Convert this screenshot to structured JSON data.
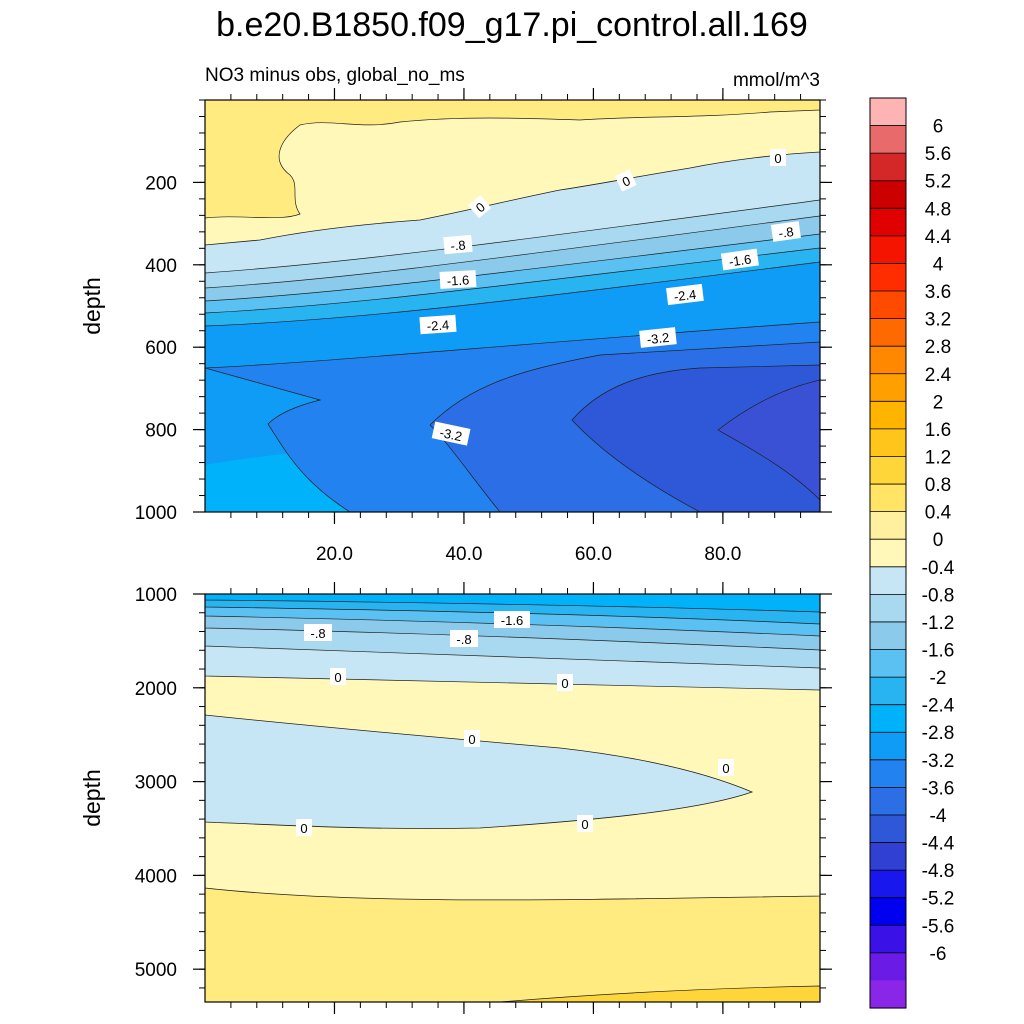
{
  "chart_data": {
    "type": "contour",
    "title": "b.e20.B1850.f09_g17.pi_control.all.169",
    "subtitle": "NO3 minus obs, global_no_ms",
    "units": "mmol/m^3",
    "colorbar": {
      "levels": [
        "6",
        "5.6",
        "5.2",
        "4.8",
        "4.4",
        "4",
        "3.6",
        "3.2",
        "2.8",
        "2.4",
        "2",
        "1.6",
        "1.2",
        "0.8",
        "0.4",
        "0",
        "-0.4",
        "-0.8",
        "-1.2",
        "-1.6",
        "-2",
        "-2.4",
        "-2.8",
        "-3.2",
        "-3.6",
        "-4",
        "-4.4",
        "-4.8",
        "-5.2",
        "-5.6",
        "-6"
      ],
      "colors": [
        "#FFB4B4",
        "#E86A6A",
        "#D42828",
        "#CC0000",
        "#E10000",
        "#F51400",
        "#FF2D00",
        "#FF4A00",
        "#FF6A00",
        "#FF8800",
        "#FFA000",
        "#FFB400",
        "#FFC51A",
        "#FFD63A",
        "#FFE466",
        "#FFF0A0",
        "#FFF8B8",
        "#C6E6F5",
        "#A8D9F0",
        "#8CCAEC",
        "#5BC1F3",
        "#28B4F0",
        "#00B2FA",
        "#0E9CF6",
        "#2283F0",
        "#2C6EE6",
        "#2F58D8",
        "#2F40D2",
        "#1818EE",
        "#0000F0",
        "#3A12E8",
        "#6A1CE6",
        "#8A26E8"
      ]
    },
    "panels": [
      {
        "name": "upper",
        "ylabel": "depth",
        "xlim": [
          0,
          95
        ],
        "ylim": [
          1000,
          0
        ],
        "yticks": [
          "200",
          "400",
          "600",
          "800",
          "1000"
        ],
        "xticks": [
          "20.0",
          "40.0",
          "60.0",
          "80.0"
        ],
        "contour_labels": [
          "0",
          "0",
          "0",
          "-.8",
          "-.8",
          "-1.6",
          "-1.6",
          "-2.4",
          "-2.4",
          "-3.2",
          "-3.2"
        ]
      },
      {
        "name": "lower",
        "ylabel": "depth",
        "xlim": [
          0,
          95
        ],
        "ylim": [
          5350,
          1000
        ],
        "yticks": [
          "1000",
          "2000",
          "3000",
          "4000",
          "5000"
        ],
        "contour_labels": [
          "-1.6",
          "-.8",
          "-.8",
          "0",
          "0",
          "0",
          "0",
          "0",
          "0"
        ]
      }
    ]
  }
}
